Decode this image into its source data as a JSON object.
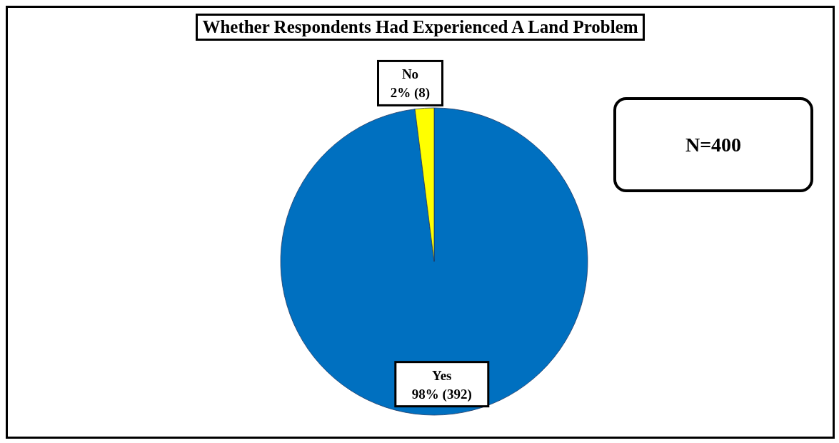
{
  "chart_data": {
    "type": "pie",
    "title": "Whether Respondents Had Experienced A Land Problem",
    "categories": [
      "Yes",
      "No"
    ],
    "values": [
      392,
      8
    ],
    "colors": [
      "#0070c0",
      "#ffff00"
    ],
    "value_labels": [
      "98% (392)",
      "2% (8)"
    ],
    "annotations": [
      "N=400"
    ]
  }
}
